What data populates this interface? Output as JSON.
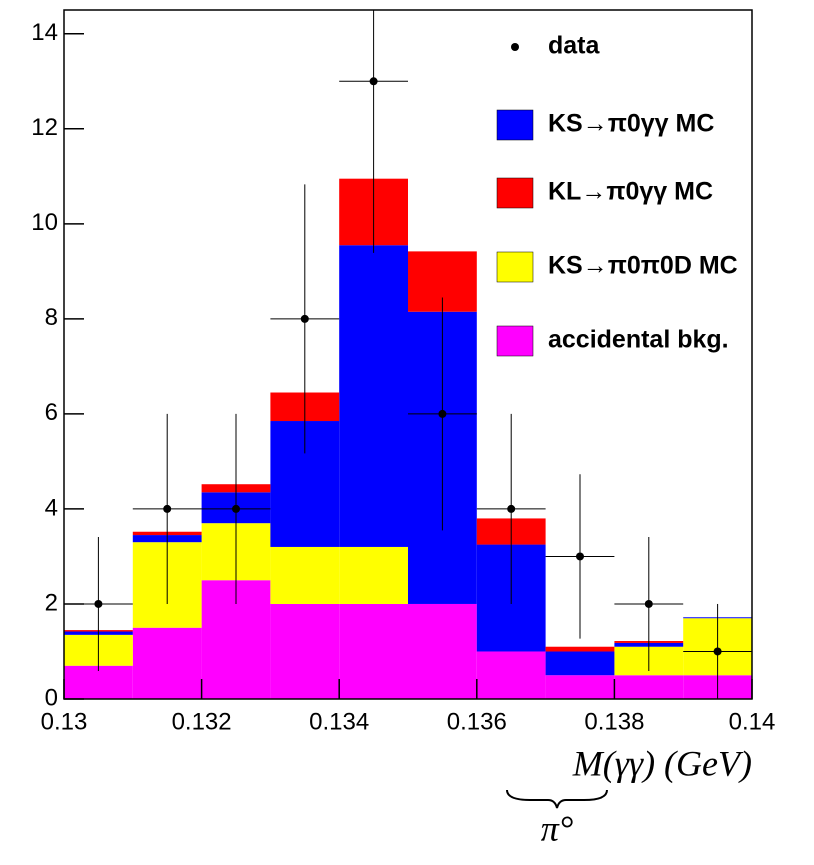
{
  "chart_data": {
    "type": "stacked_histogram",
    "bins": [
      0.13,
      0.131,
      0.132,
      0.133,
      0.134,
      0.135,
      0.136,
      0.137,
      0.138,
      0.139,
      0.14
    ],
    "series": [
      {
        "name": "accidental bkg.",
        "color": "#ff00ff",
        "values": [
          0.7,
          1.5,
          2.5,
          2.0,
          2.0,
          2.0,
          1.0,
          0.5,
          0.5,
          0.5
        ]
      },
      {
        "name": "KS→π0π0D MC",
        "color": "#ffff00",
        "values": [
          0.65,
          1.8,
          1.2,
          1.2,
          1.2,
          0,
          0,
          0,
          0.6,
          1.2
        ]
      },
      {
        "name": "KS→π0γγ MC",
        "color": "#0000ff",
        "values": [
          0.07,
          0.15,
          0.65,
          2.65,
          6.35,
          6.15,
          2.25,
          0.5,
          0.08,
          0.02
        ]
      },
      {
        "name": "KL→π0γγ MC",
        "color": "#ff0000",
        "values": [
          0.03,
          0.07,
          0.17,
          0.6,
          1.4,
          1.27,
          0.55,
          0.1,
          0.04,
          0
        ]
      }
    ],
    "data": {
      "name": "data",
      "color": "#000000",
      "values": [
        2,
        4,
        4,
        8,
        13,
        6,
        4,
        3,
        2,
        1
      ],
      "errors": [
        1.41,
        2,
        2,
        2.83,
        3.61,
        2.45,
        2,
        1.73,
        1.41,
        1
      ]
    },
    "xlim": [
      0.13,
      0.14
    ],
    "xticks": [
      0.13,
      0.132,
      0.134,
      0.136,
      0.138,
      0.14
    ],
    "ylim": [
      0,
      14.5
    ],
    "yticks": [
      0,
      2,
      4,
      6,
      8,
      10,
      12,
      14
    ],
    "xlabel": "M(γγ) (GeV)",
    "xlabel_annotation": "π°",
    "legend_position": "upper-right"
  }
}
